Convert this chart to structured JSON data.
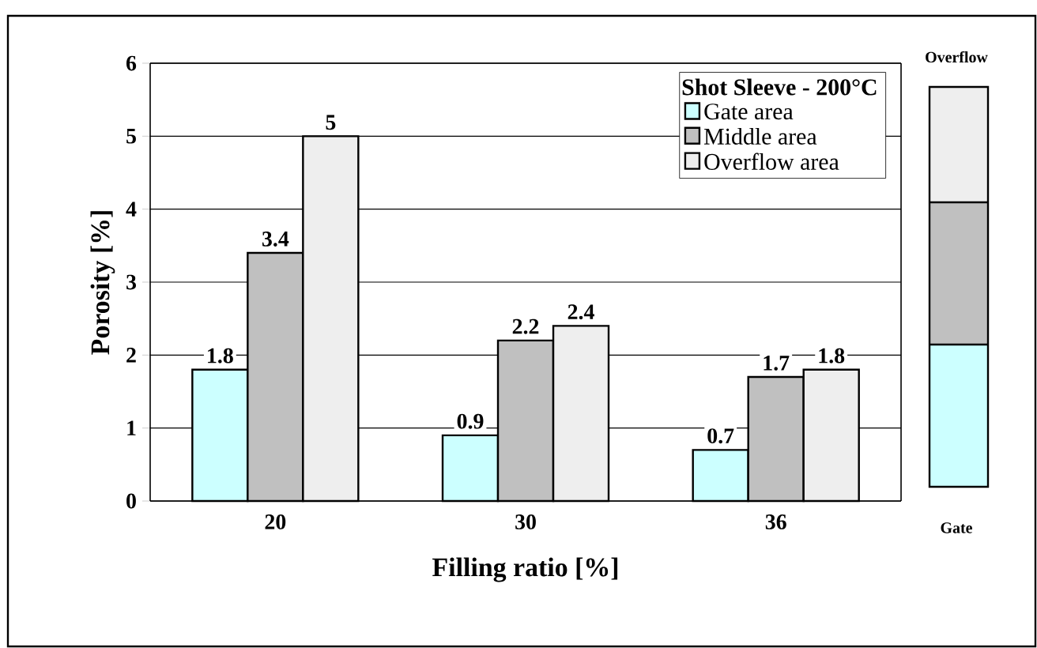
{
  "chart_data": {
    "type": "bar",
    "xlabel": "Filling ratio [%]",
    "ylabel": "Porosity [%]",
    "legend_title": "Shot Sleeve - 200°C",
    "categories": [
      "20",
      "30",
      "36"
    ],
    "series": [
      {
        "name": "Gate area",
        "color": "#ccffff",
        "values": [
          1.8,
          0.9,
          0.7
        ]
      },
      {
        "name": "Middle area",
        "color": "#c0c0c0",
        "values": [
          3.4,
          2.2,
          1.7
        ]
      },
      {
        "name": "Overflow area",
        "color": "#eeeeee",
        "values": [
          5,
          2.4,
          1.8
        ]
      }
    ],
    "ylim": [
      0,
      6
    ],
    "yticks": [
      0,
      1,
      2,
      3,
      4,
      5,
      6
    ],
    "grid": "y",
    "legend": "top right",
    "data_labels": true,
    "annotations": [
      "Overflow",
      "Gate"
    ]
  }
}
